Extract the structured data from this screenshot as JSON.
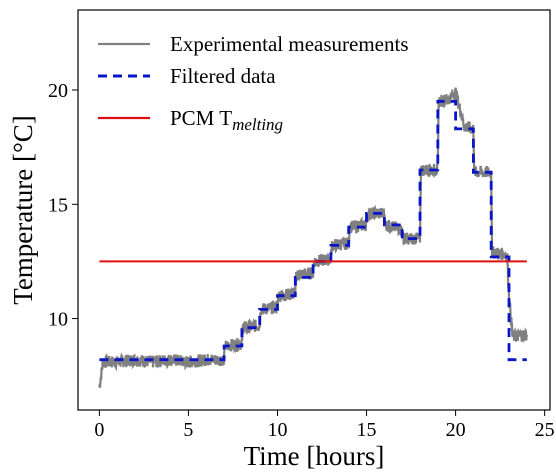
{
  "chart_data": {
    "type": "line",
    "xlabel": "Time [hours]",
    "ylabel": "Temperature [°C]",
    "xlim": [
      -1.2,
      25.3
    ],
    "ylim": [
      6.0,
      23.5
    ],
    "x_ticks": [
      0,
      5,
      10,
      15,
      20,
      25
    ],
    "y_ticks": [
      10,
      15,
      20
    ],
    "x_tick_labels": [
      "0",
      "5",
      "10",
      "15",
      "20",
      "25"
    ],
    "y_tick_labels": [
      "10",
      "15",
      "20"
    ],
    "grid": false,
    "legend_position": "top-left",
    "series": [
      {
        "name": "Experimental measurements",
        "style": "solid",
        "color": "#808080",
        "x": [
          0,
          0.2,
          1,
          2,
          3,
          4,
          5,
          6,
          7,
          7.05,
          8,
          8.05,
          9,
          9.05,
          10,
          10.05,
          11,
          11.05,
          12,
          12.05,
          13,
          13.05,
          14,
          14.05,
          15,
          15.05,
          16,
          16.05,
          17,
          17.05,
          18,
          18.05,
          19,
          19.05,
          19.6,
          20,
          20.3,
          20.5,
          21,
          21.05,
          22,
          22.05,
          22.8,
          22.9,
          23.0,
          23.2,
          24
        ],
        "y": [
          7.0,
          8.1,
          8.1,
          8.2,
          8.1,
          8.2,
          8.1,
          8.2,
          8.2,
          8.8,
          8.9,
          9.6,
          9.7,
          10.4,
          10.5,
          11.0,
          11.1,
          11.9,
          12.0,
          12.5,
          12.6,
          13.2,
          13.3,
          14.0,
          14.1,
          14.6,
          14.6,
          14.1,
          13.9,
          13.5,
          13.5,
          16.5,
          16.5,
          19.5,
          19.6,
          19.9,
          19.0,
          18.4,
          18.3,
          16.4,
          16.4,
          12.9,
          12.8,
          12.7,
          11.0,
          9.2,
          9.3
        ]
      },
      {
        "name": "Filtered data",
        "style": "dashed",
        "color": "#0a14c8",
        "x": [
          0,
          7,
          7,
          8,
          8,
          9,
          9,
          10,
          10,
          11,
          11,
          12,
          12,
          13,
          13,
          14,
          14,
          15,
          15,
          16,
          16,
          17,
          17,
          18,
          18,
          19,
          19,
          20,
          20,
          21,
          21,
          22,
          22,
          23,
          23,
          24
        ],
        "y": [
          8.2,
          8.2,
          8.8,
          8.8,
          9.6,
          9.6,
          10.4,
          10.4,
          11.0,
          11.0,
          11.8,
          11.8,
          12.5,
          12.5,
          13.2,
          13.2,
          14.0,
          14.0,
          14.6,
          14.6,
          14.1,
          14.1,
          13.5,
          13.5,
          16.5,
          16.5,
          19.5,
          19.5,
          18.3,
          18.3,
          16.4,
          16.4,
          12.7,
          12.7,
          8.2,
          8.2
        ]
      },
      {
        "name": "PCM T",
        "name_subscript": "melting",
        "style": "solid",
        "color": "#e01010",
        "x": [
          0,
          24
        ],
        "y": [
          12.5,
          12.5
        ]
      }
    ]
  }
}
